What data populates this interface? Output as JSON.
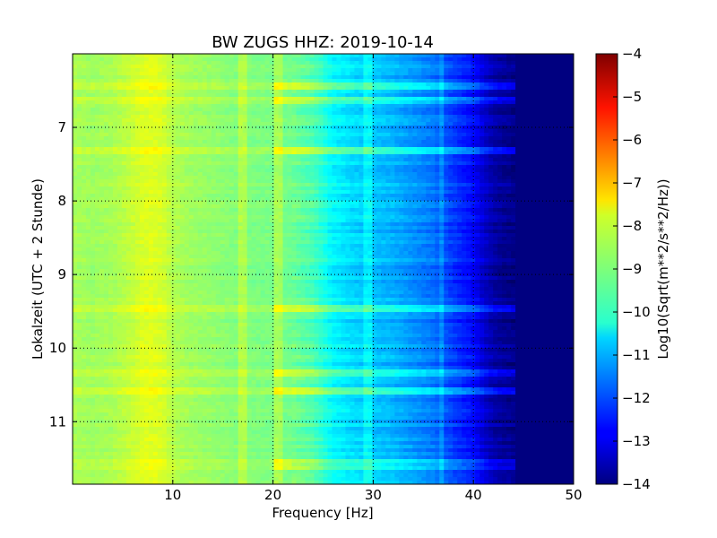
{
  "chart_data": {
    "type": "heatmap",
    "title": "BW ZUGS HHZ: 2019-10-14",
    "xlabel": "Frequency [Hz]",
    "ylabel": "Lokalzeit (UTC + 2 Stunde)",
    "xlim": [
      0,
      50
    ],
    "ylim": [
      6.0,
      11.85
    ],
    "y_inverted": true,
    "x_ticks": [
      10,
      20,
      30,
      40,
      50
    ],
    "y_ticks": [
      7,
      8,
      9,
      10,
      11
    ],
    "grid": true,
    "colormap": "jet",
    "colorbar": {
      "label": "Log10(Sqrt(m**2/s**2/Hz))",
      "range": [
        -14,
        -4
      ],
      "ticks": [
        -4,
        -5,
        -6,
        -7,
        -8,
        -9,
        -10,
        -11,
        -12,
        -13,
        -14
      ]
    },
    "spectrum_profile": {
      "frequency_hz": [
        0,
        2,
        4,
        6,
        7,
        8,
        9,
        10,
        12,
        14,
        16,
        18,
        20,
        22,
        24,
        25,
        26,
        28,
        30,
        32,
        34,
        36,
        38,
        40,
        41,
        42,
        43,
        44,
        46,
        50
      ],
      "log10_amplitude": [
        -8.6,
        -8.7,
        -8.6,
        -8.3,
        -8.1,
        -8.05,
        -8.15,
        -8.5,
        -8.7,
        -8.8,
        -8.95,
        -9.0,
        -9.05,
        -9.15,
        -9.5,
        -9.9,
        -10.3,
        -10.6,
        -10.8,
        -11.0,
        -11.3,
        -11.6,
        -12.2,
        -12.7,
        -13.2,
        -13.6,
        -13.8,
        -13.9,
        -14.0,
        -14.0
      ]
    },
    "narrowband_lines_hz": [
      17,
      20.5,
      29.5,
      36.8
    ],
    "broadband_events_hour": [
      6.4,
      6.6,
      7.3,
      9.45,
      10.3,
      10.55,
      11.55,
      11.6
    ]
  }
}
